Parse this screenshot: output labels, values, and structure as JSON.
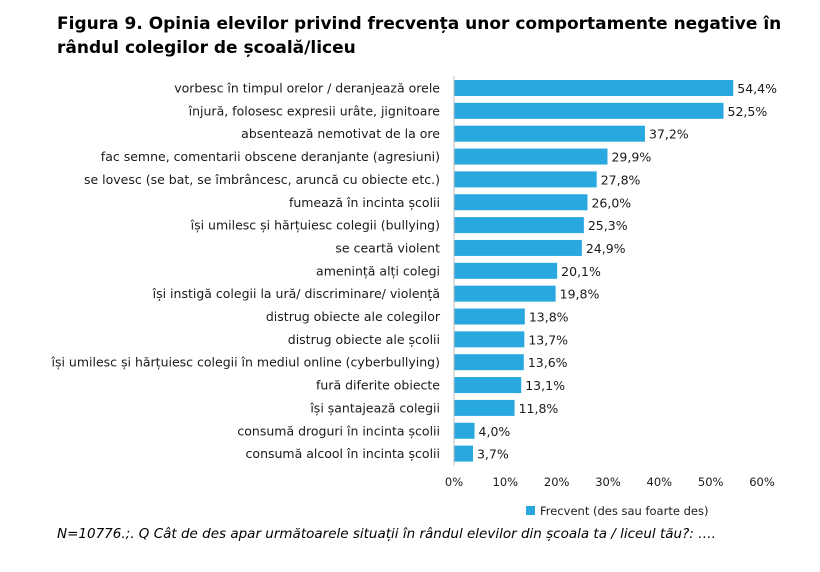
{
  "figure": {
    "title": "Figura 9. Opinia elevilor privind frecvența unor comportamente negative în rândul colegilor de școală/liceu",
    "note": "N=10776.;. Q Cât de des apar următoarele situații în rândul elevilor din școala ta / liceul tău?: …."
  },
  "chart_data": {
    "type": "bar",
    "orientation": "horizontal",
    "categories": [
      "vorbesc în timpul orelor / deranjează orele",
      "înjură, folosesc expresii urâte, jignitoare",
      "absentează nemotivat de la ore",
      "fac semne, comentarii obscene deranjante (agresiuni)",
      "se lovesc  (se bat, se îmbrâncesc, aruncă cu obiecte etc.)",
      "fumează în incinta școlii",
      "își umilesc și hărțuiesc colegii (bullying)",
      "se ceartă violent",
      "amenință alți colegi",
      "își instigă colegii la ură/ discriminare/ violență",
      "distrug obiecte ale colegilor",
      "distrug obiecte ale școlii",
      "își umilesc și hărțuiesc colegii în mediul online (cyberbullying)",
      "fură diferite obiecte",
      "își șantajează colegii",
      "consumă droguri în incinta școlii",
      "consumă alcool în incinta școlii"
    ],
    "series": [
      {
        "name": "Frecvent (des sau foarte des)",
        "values": [
          54.4,
          52.5,
          37.2,
          29.9,
          27.8,
          26.0,
          25.3,
          24.9,
          20.1,
          19.8,
          13.8,
          13.7,
          13.6,
          13.1,
          11.8,
          4.0,
          3.7
        ],
        "value_labels": [
          "54,4%",
          "52,5%",
          "37,2%",
          "29,9%",
          "27,8%",
          "26,0%",
          "25,3%",
          "24,9%",
          "20,1%",
          "19,8%",
          "13,8%",
          "13,7%",
          "13,6%",
          "13,1%",
          "11,8%",
          "4,0%",
          "3,7%"
        ]
      }
    ],
    "xlim": [
      0,
      60
    ],
    "xticks": [
      0,
      10,
      20,
      30,
      40,
      50,
      60
    ],
    "xtick_labels": [
      "0%",
      "10%",
      "20%",
      "30%",
      "40%",
      "50%",
      "60%"
    ],
    "grid": false,
    "legend": "bottom",
    "colors": {
      "bar": "#29A8E0",
      "axis": "#bfbfbf",
      "text": "#1a1a1a"
    }
  }
}
